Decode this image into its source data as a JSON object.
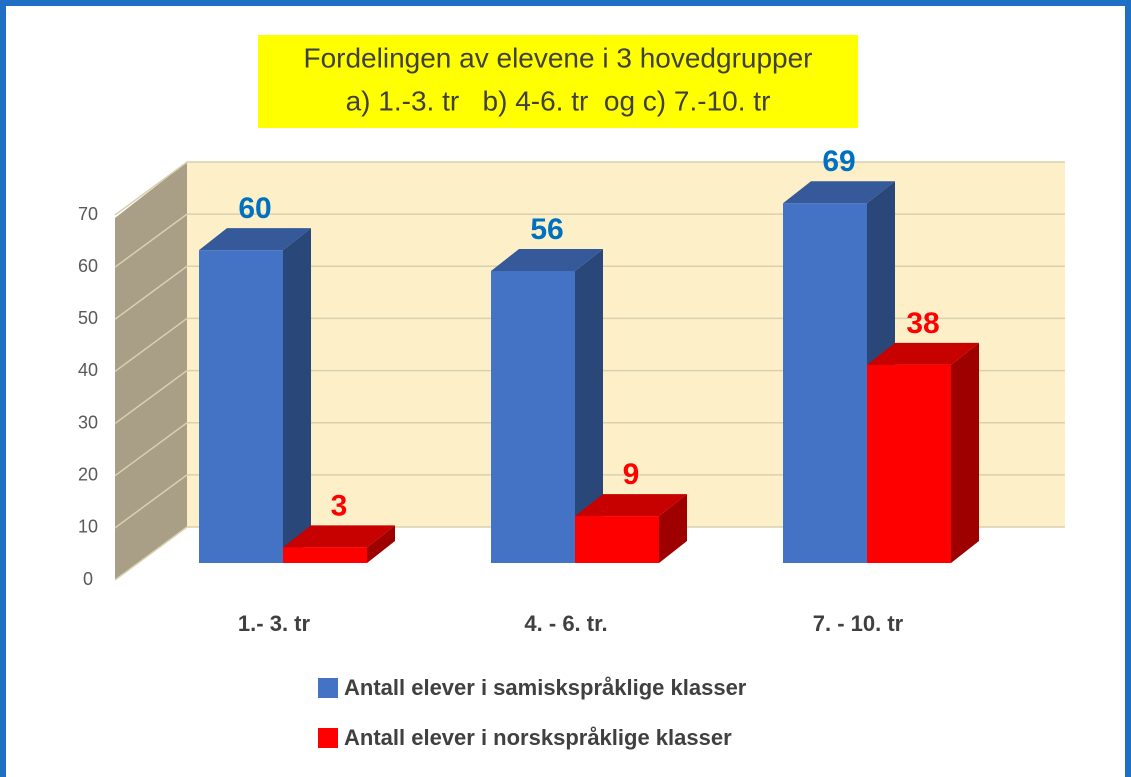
{
  "chart_data": {
    "type": "bar3d",
    "title": "Fordelingen av elevene i 3 hovedgrupper",
    "subtitle": "a) 1.-3. tr   b) 4-6. tr  og c) 7.-10. tr",
    "categories": [
      "1.- 3. tr",
      "4. - 6. tr.",
      "7. - 10. tr"
    ],
    "series": [
      {
        "name": "Antall elever i samiskspråklige klasser",
        "color": "#4472c4",
        "label_color": "#0070c0",
        "values": [
          60,
          56,
          69
        ]
      },
      {
        "name": "Antall elever i norskspråklige klasser",
        "color": "#ff0000",
        "label_color": "#ff0000",
        "values": [
          3,
          9,
          38
        ]
      }
    ],
    "ylim": [
      0,
      70
    ],
    "yticks": [
      0,
      10,
      20,
      30,
      40,
      50,
      60,
      70
    ],
    "grid": true
  }
}
